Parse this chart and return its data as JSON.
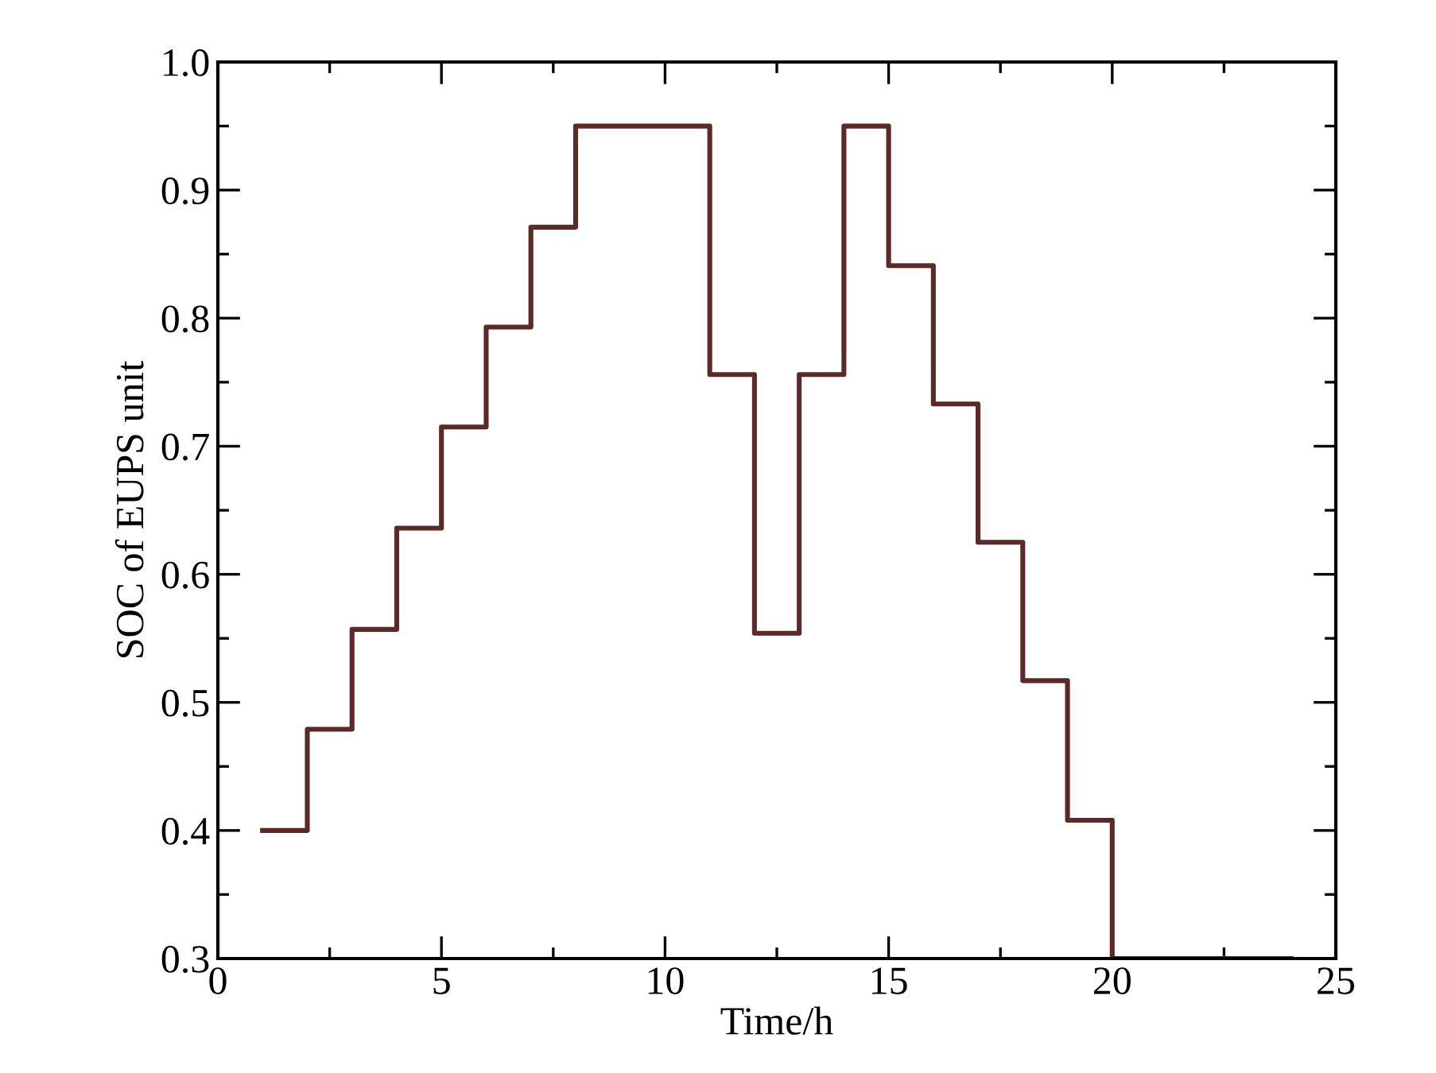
{
  "chart_data": {
    "type": "step",
    "xlabel": "Time/h",
    "ylabel": "SOC of EUPS unit",
    "x": [
      1,
      2,
      3,
      4,
      5,
      6,
      7,
      8,
      9,
      10,
      11,
      12,
      13,
      14,
      15,
      16,
      17,
      18,
      19,
      20,
      21,
      22,
      23,
      24
    ],
    "series": [
      {
        "color": "#5c2a26",
        "values": [
          0.4,
          0.479,
          0.557,
          0.636,
          0.715,
          0.793,
          0.871,
          0.95,
          0.95,
          0.95,
          0.756,
          0.554,
          0.756,
          0.95,
          0.841,
          0.733,
          0.625,
          0.517,
          0.408,
          0.3,
          0.3,
          0.3,
          0.3,
          0.3
        ]
      }
    ],
    "xlim": [
      0,
      25
    ],
    "xticks": [
      0,
      5,
      10,
      15,
      20,
      25
    ],
    "ylim": [
      0.3,
      1.0
    ],
    "yticks": [
      {
        "value": 0.3,
        "label": "0.3"
      },
      {
        "value": 0.4,
        "label": "0.4"
      },
      {
        "value": 0.5,
        "label": "0.5"
      },
      {
        "value": 0.6,
        "label": "0.6"
      },
      {
        "value": 0.7,
        "label": "0.7"
      },
      {
        "value": 0.8,
        "label": "0.8"
      },
      {
        "value": 0.9,
        "label": "0.9"
      },
      {
        "value": 1.0,
        "label": "1.0"
      }
    ],
    "grid": false,
    "legend": false,
    "marker": "none",
    "line_style": "solid"
  }
}
